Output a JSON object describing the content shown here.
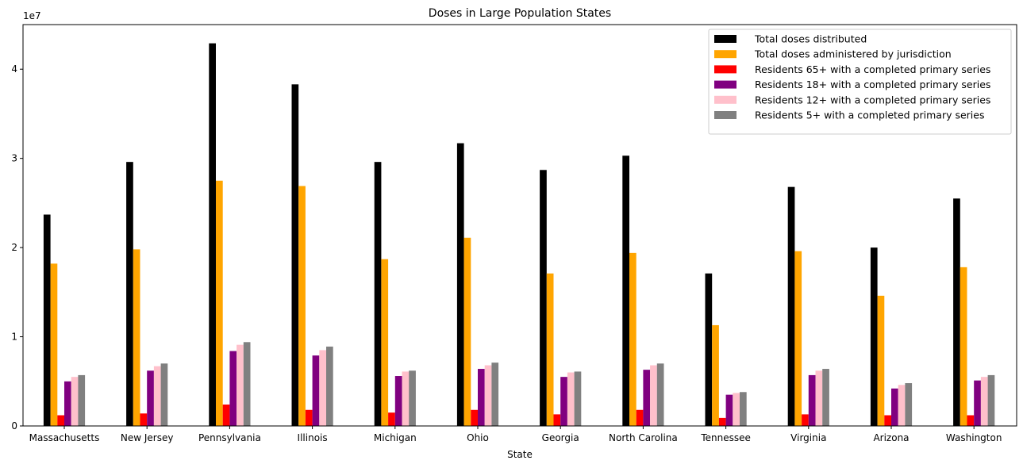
{
  "chart_data": {
    "type": "bar",
    "title": "Doses in Large Population States",
    "xlabel": "State",
    "ylabel": "",
    "y_offset_label": "1e7",
    "ylim": [
      0,
      4.5
    ],
    "yticks": [
      0,
      1,
      2,
      3,
      4
    ],
    "ytick_labels": [
      "0",
      "1",
      "2",
      "3",
      "4"
    ],
    "grid": false,
    "legend_position": "top-right",
    "categories": [
      "Massachusetts",
      "New Jersey",
      "Pennsylvania",
      "Illinois",
      "Michigan",
      "Ohio",
      "Georgia",
      "North Carolina",
      "Tennessee",
      "Virginia",
      "Arizona",
      "Washington"
    ],
    "series": [
      {
        "name": "Total doses distributed",
        "color": "#000000",
        "values": [
          2.37,
          2.96,
          4.29,
          3.83,
          2.96,
          3.17,
          2.87,
          3.03,
          1.71,
          2.68,
          2.0,
          2.55
        ]
      },
      {
        "name": "Total doses administered by jurisdiction",
        "color": "#ffa500",
        "values": [
          1.82,
          1.98,
          2.75,
          2.69,
          1.87,
          2.11,
          1.71,
          1.94,
          1.13,
          1.96,
          1.46,
          1.78
        ]
      },
      {
        "name": "Residents 65+ with a completed primary series",
        "color": "#ff0000",
        "values": [
          0.12,
          0.14,
          0.24,
          0.18,
          0.15,
          0.18,
          0.13,
          0.18,
          0.09,
          0.13,
          0.12,
          0.12
        ]
      },
      {
        "name": "Residents 18+ with a completed primary series",
        "color": "#800080",
        "values": [
          0.5,
          0.62,
          0.84,
          0.79,
          0.56,
          0.64,
          0.55,
          0.63,
          0.35,
          0.57,
          0.42,
          0.51
        ]
      },
      {
        "name": "Residents 12+ with a completed primary series",
        "color": "#ffc0cb",
        "values": [
          0.55,
          0.67,
          0.91,
          0.85,
          0.61,
          0.68,
          0.6,
          0.68,
          0.37,
          0.62,
          0.46,
          0.55
        ]
      },
      {
        "name": "Residents 5+ with a completed primary series",
        "color": "#808080",
        "values": [
          0.57,
          0.7,
          0.94,
          0.89,
          0.62,
          0.71,
          0.61,
          0.7,
          0.38,
          0.64,
          0.48,
          0.57
        ]
      }
    ]
  }
}
